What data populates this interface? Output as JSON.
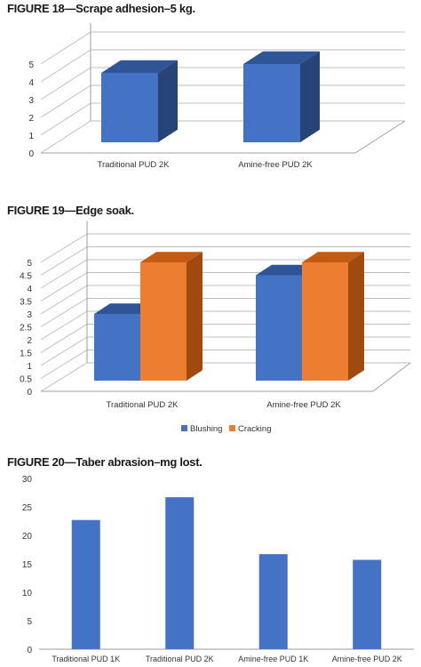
{
  "figures": {
    "fig18": {
      "title": "FIGURE 18—Scrape adhesion–5 kg."
    },
    "fig19": {
      "title": "FIGURE 19—Edge soak."
    },
    "fig20": {
      "title": "FIGURE 20—Taber abrasion–mg lost."
    }
  },
  "colors": {
    "blue": "#4472c4",
    "blue_top": "#2f5597",
    "blue_side": "#264478",
    "orange": "#ed7d31",
    "orange_top": "#c55a11",
    "orange_side": "#a14a10"
  },
  "chart_data": [
    {
      "id": "fig18",
      "type": "bar",
      "style": "3d-column",
      "title": "FIGURE 18—Scrape adhesion–5 kg.",
      "categories": [
        "Traditional PUD 2K",
        "Amine-free PUD 2K"
      ],
      "series": [
        {
          "values": [
            4.5,
            5
          ]
        }
      ],
      "y_ticks": [
        "0",
        "1",
        "2",
        "3",
        "4",
        "5"
      ],
      "ylim": [
        0,
        5.5
      ],
      "grid": true,
      "legend": "none"
    },
    {
      "id": "fig19",
      "type": "bar",
      "style": "3d-clustered-column",
      "title": "FIGURE 19—Edge soak.",
      "categories": [
        "Traditional PUD 2K",
        "Amine-free PUD 2K"
      ],
      "series": [
        {
          "name": "Blushing",
          "values": [
            3,
            4.5
          ]
        },
        {
          "name": "Cracking",
          "values": [
            5,
            5
          ]
        }
      ],
      "y_ticks": [
        "0",
        "0.5",
        "1",
        "1.5",
        "2",
        "2.5",
        "3",
        "3.5",
        "4",
        "4.5",
        "5"
      ],
      "ylim": [
        0,
        5.5
      ],
      "grid": true,
      "legend": "bottom"
    },
    {
      "id": "fig20",
      "type": "bar",
      "title": "FIGURE 20—Taber abrasion–mg lost.",
      "categories": [
        "Traditional PUD 1K",
        "Traditional PUD 2K",
        "Amine-free PUD 1K",
        "Amine-free PUD 2K"
      ],
      "series": [
        {
          "values": [
            22.7,
            26.7,
            16.7,
            15.7
          ]
        }
      ],
      "y_ticks": [
        "0",
        "5",
        "10",
        "15",
        "20",
        "25",
        "30"
      ],
      "ylim": [
        0,
        30
      ],
      "grid": false,
      "legend": "none"
    }
  ]
}
